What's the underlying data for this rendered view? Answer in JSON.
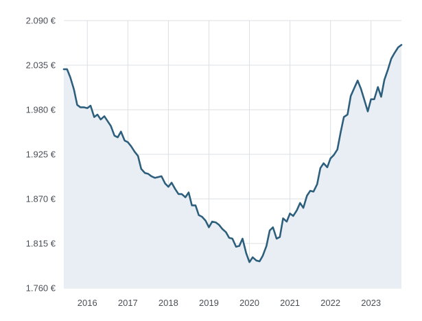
{
  "chart_data": {
    "type": "area",
    "title": "",
    "xlabel": "",
    "ylabel": "",
    "y_unit_suffix": " €",
    "ylim": [
      1760,
      2090
    ],
    "xlim": [
      2015.42,
      2023.75
    ],
    "y_ticks": [
      1760,
      1815,
      1870,
      1925,
      1980,
      2035,
      2090
    ],
    "y_tick_labels": [
      "1.760 €",
      "1.815 €",
      "1.870 €",
      "1.925 €",
      "1.980 €",
      "2.035 €",
      "2.090 €"
    ],
    "x_ticks": [
      2016,
      2017,
      2018,
      2019,
      2020,
      2021,
      2022,
      2023
    ],
    "x_tick_labels": [
      "2016",
      "2017",
      "2018",
      "2019",
      "2020",
      "2021",
      "2022",
      "2023"
    ],
    "grid": true,
    "legend": "none",
    "colors": {
      "line": "#2d5f7d",
      "area": "#e8eef3",
      "grid": "#dcdfe3"
    },
    "series": [
      {
        "x": [
          2015.42,
          2015.5,
          2015.58,
          2015.67,
          2015.75,
          2015.83,
          2015.92,
          2016.0,
          2016.08,
          2016.17,
          2016.25,
          2016.33,
          2016.42,
          2016.5,
          2016.58,
          2016.67,
          2016.75,
          2016.83,
          2016.92,
          2017.0,
          2017.08,
          2017.17,
          2017.25,
          2017.33,
          2017.42,
          2017.5,
          2017.58,
          2017.67,
          2017.75,
          2017.83,
          2017.92,
          2018.0,
          2018.08,
          2018.17,
          2018.25,
          2018.33,
          2018.42,
          2018.5,
          2018.58,
          2018.67,
          2018.75,
          2018.83,
          2018.92,
          2019.0,
          2019.08,
          2019.17,
          2019.25,
          2019.33,
          2019.42,
          2019.5,
          2019.58,
          2019.67,
          2019.75,
          2019.83,
          2019.92,
          2020.0,
          2020.08,
          2020.17,
          2020.25,
          2020.33,
          2020.42,
          2020.5,
          2020.58,
          2020.67,
          2020.75,
          2020.83,
          2020.92,
          2021.0,
          2021.08,
          2021.17,
          2021.25,
          2021.33,
          2021.42,
          2021.5,
          2021.58,
          2021.67,
          2021.75,
          2021.83,
          2021.92,
          2022.0,
          2022.08,
          2022.17,
          2022.25,
          2022.33,
          2022.42,
          2022.5,
          2022.58,
          2022.67,
          2022.75,
          2022.83,
          2022.92,
          2023.0,
          2023.08,
          2023.17,
          2023.25,
          2023.33,
          2023.42,
          2023.5,
          2023.58,
          2023.67,
          2023.75
        ],
        "values": [
          2030,
          2030,
          2020,
          2005,
          1986,
          1983,
          1983,
          1982,
          1985,
          1971,
          1974,
          1968,
          1972,
          1966,
          1960,
          1948,
          1946,
          1953,
          1942,
          1940,
          1935,
          1928,
          1923,
          1907,
          1902,
          1901,
          1898,
          1896,
          1897,
          1898,
          1889,
          1885,
          1890,
          1882,
          1876,
          1876,
          1872,
          1878,
          1862,
          1862,
          1850,
          1848,
          1843,
          1835,
          1842,
          1841,
          1838,
          1833,
          1829,
          1822,
          1821,
          1811,
          1812,
          1821,
          1803,
          1792,
          1798,
          1794,
          1793,
          1800,
          1812,
          1831,
          1835,
          1821,
          1823,
          1846,
          1842,
          1852,
          1849,
          1856,
          1865,
          1859,
          1874,
          1880,
          1879,
          1888,
          1908,
          1914,
          1909,
          1920,
          1924,
          1931,
          1952,
          1971,
          1974,
          1997,
          2006,
          2016,
          2006,
          1993,
          1978,
          1993,
          1993,
          2008,
          1996,
          2017,
          2030,
          2043,
          2050,
          2057,
          2060
        ]
      }
    ]
  }
}
